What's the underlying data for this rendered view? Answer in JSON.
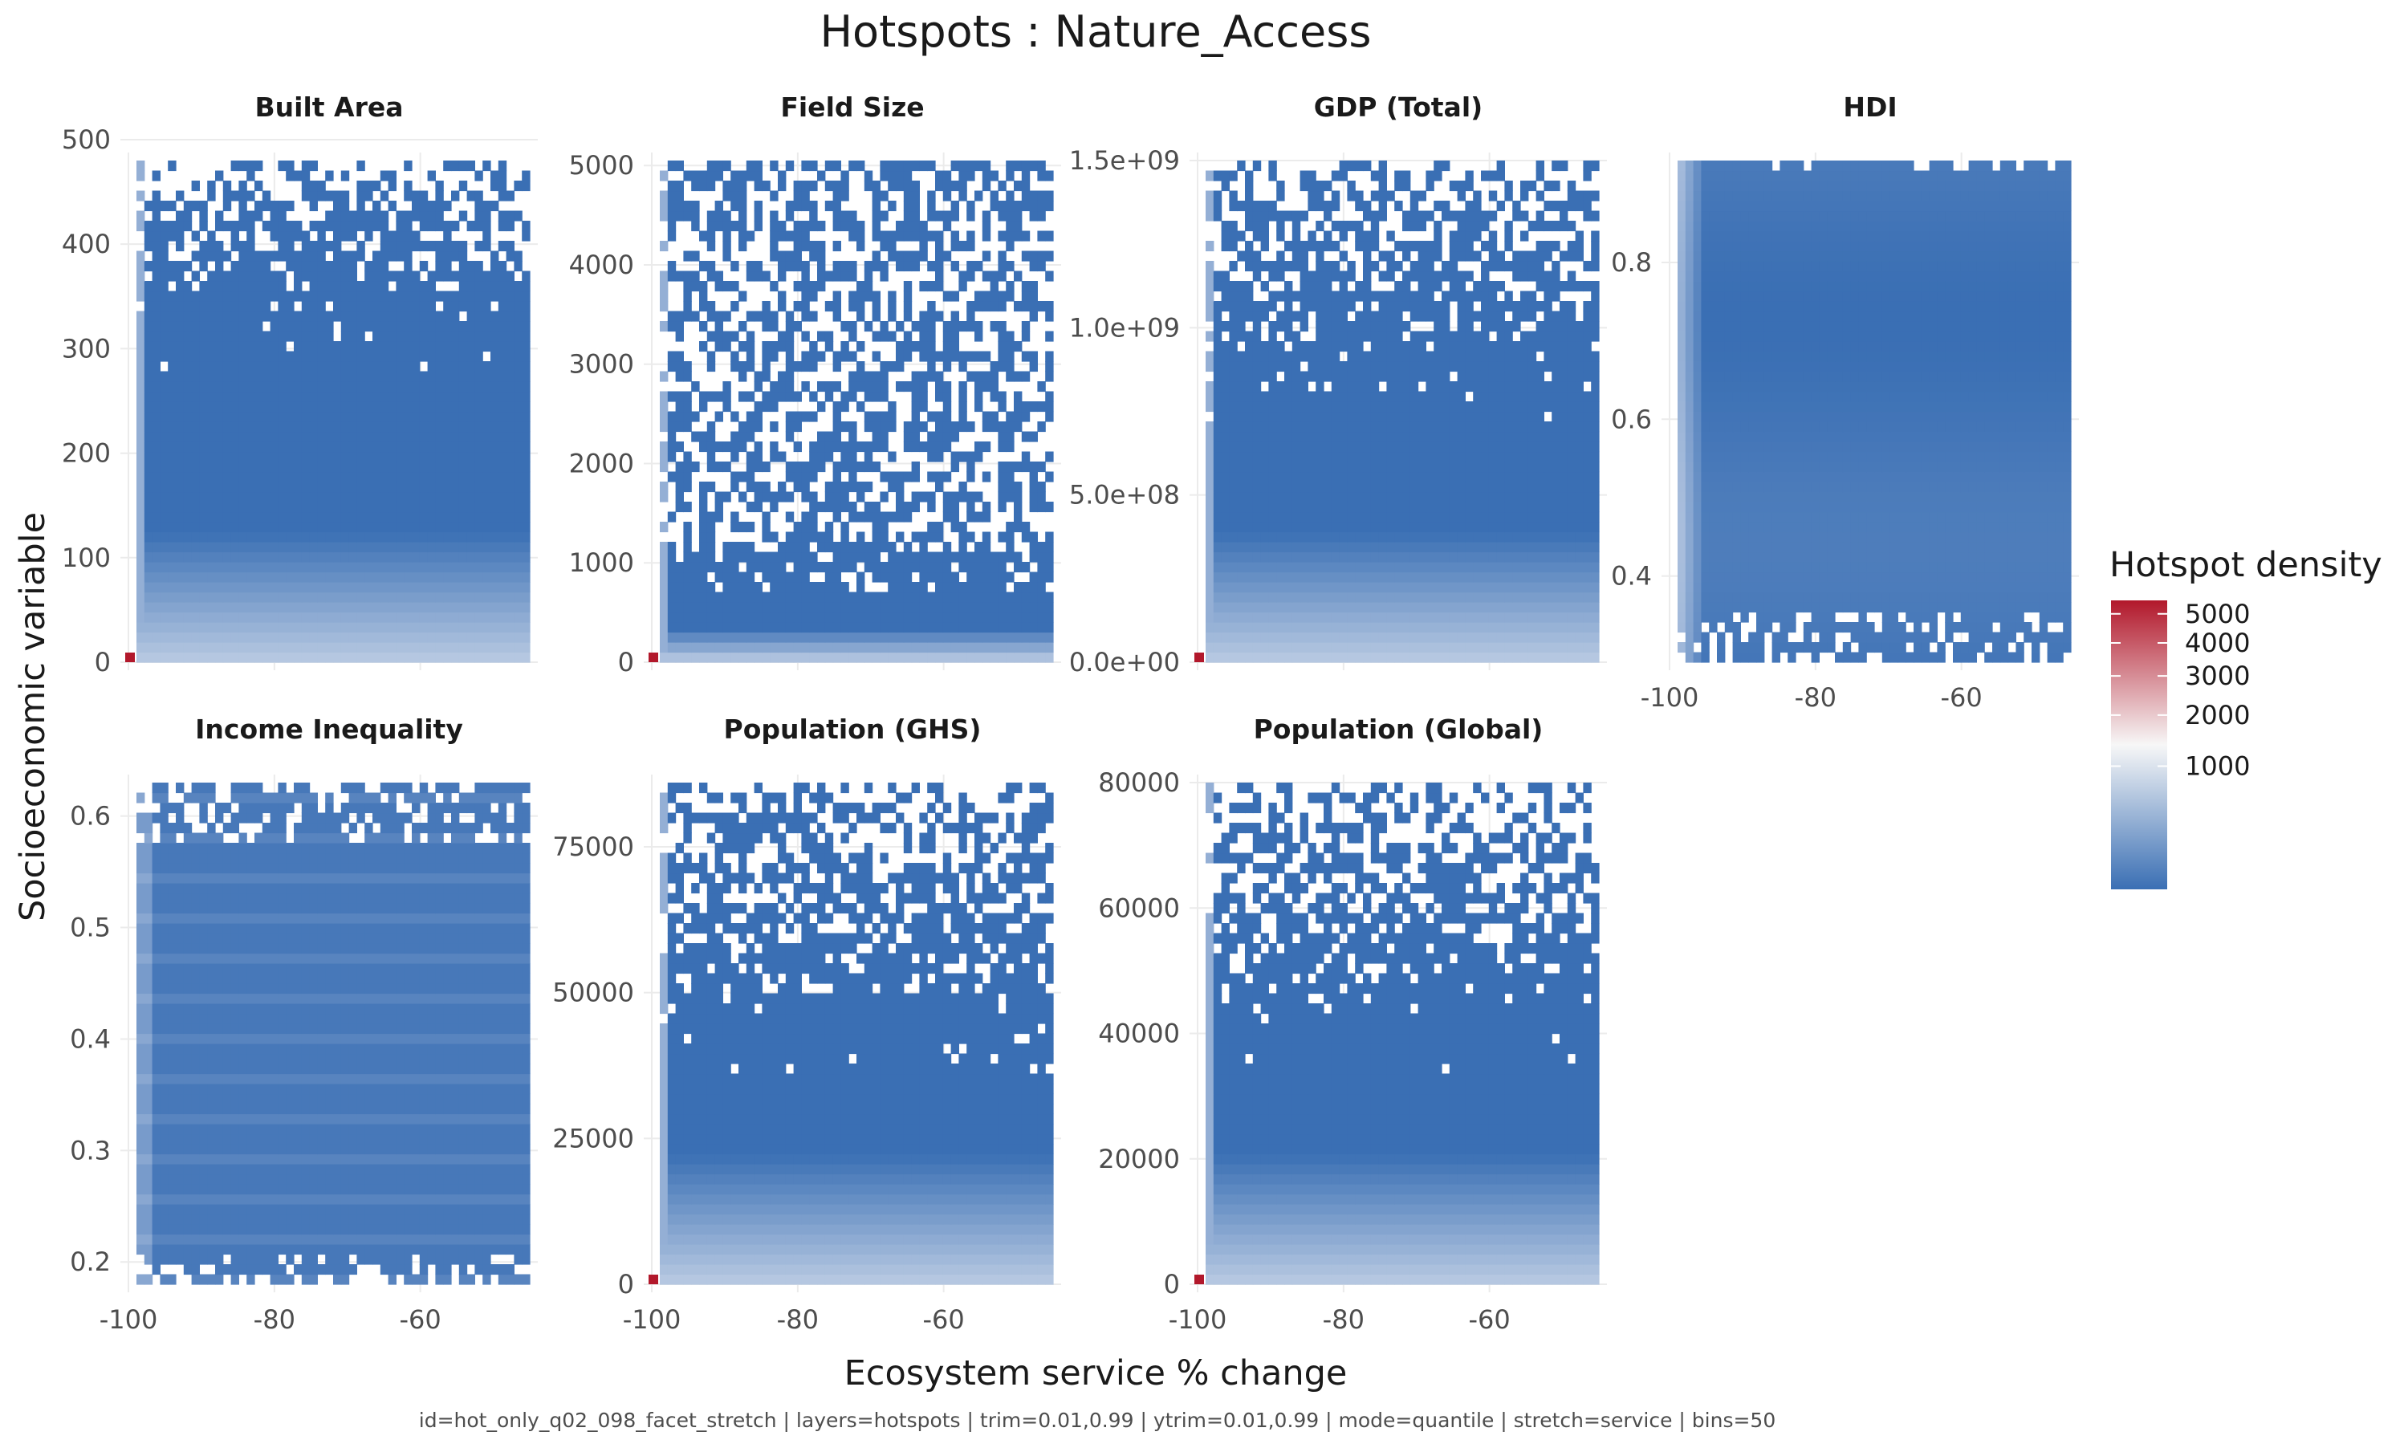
{
  "title": "Hotspots : Nature_Access",
  "caption": "id=hot_only_q02_098_facet_stretch | layers=hotspots | trim=0.01,0.99 | ytrim=0.01,0.99 | mode=quantile | stretch=service | bins=50",
  "colors": {
    "low": "#3a6fb4",
    "mid": "#f7f7f7",
    "high": "#b2182b",
    "grid": "#ebebeb"
  },
  "chart_data": {
    "type": "heatmap",
    "xlabel": "Ecosystem service % change",
    "ylabel": "Socioeconomic variable",
    "xticks": [
      -100,
      -80,
      -60
    ],
    "xlim": [
      -100,
      -45
    ],
    "bins": 50,
    "legend": {
      "title": "Hotspot density",
      "position": "right",
      "breaks": [
        "5000",
        "4000",
        "3000",
        "2000",
        "1000"
      ],
      "scale": "sqrt",
      "range": [
        0,
        5500
      ]
    },
    "panels": [
      {
        "name": "Built Area",
        "ylim": [
          0,
          480
        ],
        "yticks": [
          "500",
          "400",
          "300",
          "200",
          "100",
          "0"
        ],
        "ytick_values": [
          500,
          400,
          300,
          200,
          100,
          0
        ],
        "pattern": "top",
        "sparse_from": 0.72
      },
      {
        "name": "Field Size",
        "ylim": [
          0,
          5050
        ],
        "yticks": [
          "5000",
          "4000",
          "3000",
          "2000",
          "1000",
          "0"
        ],
        "ytick_values": [
          5000,
          4000,
          3000,
          2000,
          1000,
          0
        ],
        "pattern": "field"
      },
      {
        "name": "GDP (Total)",
        "ylim": [
          0,
          1500000000.0
        ],
        "yticks": [
          "1.5e+09",
          "1.0e+09",
          "5.0e+08",
          "0.0e+00"
        ],
        "ytick_values": [
          1500000000.0,
          1000000000.0,
          500000000.0,
          0
        ],
        "pattern": "top",
        "sparse_from": 0.6
      },
      {
        "name": "HDI",
        "ylim": [
          0.29,
          0.93
        ],
        "yticks": [
          "0.8",
          "0.6",
          "0.4"
        ],
        "ytick_values": [
          0.8,
          0.6,
          0.4
        ],
        "pattern": "hdi"
      },
      {
        "name": "Income Inequality",
        "ylim": [
          0.18,
          0.63
        ],
        "yticks": [
          "0.6",
          "0.5",
          "0.4",
          "0.3",
          "0.2"
        ],
        "ytick_values": [
          0.6,
          0.5,
          0.4,
          0.3,
          0.2
        ],
        "pattern": "income"
      },
      {
        "name": "Population (GHS)",
        "ylim": [
          0,
          86000
        ],
        "yticks": [
          "75000",
          "50000",
          "25000",
          "0"
        ],
        "ytick_values": [
          75000,
          50000,
          25000,
          0
        ],
        "pattern": "top",
        "sparse_from": 0.55
      },
      {
        "name": "Population (Global)",
        "ylim": [
          0,
          80000
        ],
        "yticks": [
          "80000",
          "60000",
          "40000",
          "20000",
          "0"
        ],
        "ytick_values": [
          80000,
          60000,
          40000,
          20000,
          0
        ],
        "pattern": "top",
        "sparse_from": 0.55
      }
    ]
  }
}
